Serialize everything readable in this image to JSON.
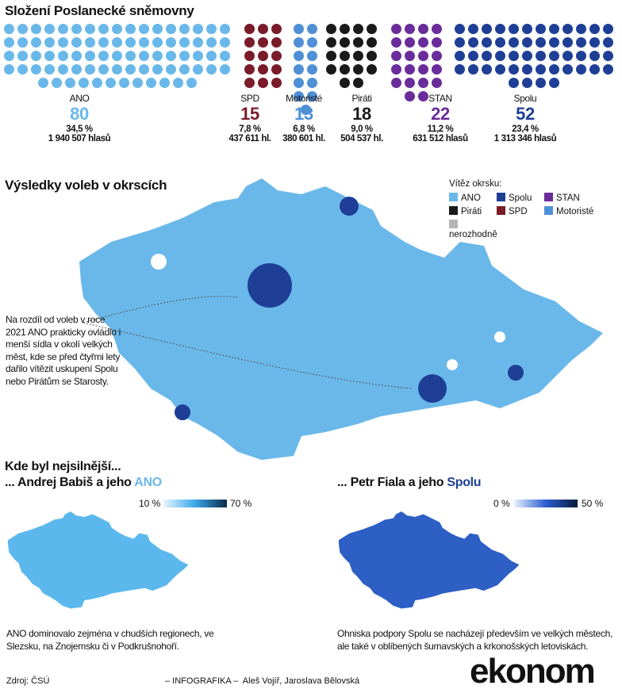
{
  "title": "Složení Poslanecké sněmovny",
  "colors": {
    "ANO": "#6ab8ea",
    "SPD": "#7a1b2a",
    "Motoristé": "#4f8fd6",
    "Piráti": "#1a1a1a",
    "STAN": "#6a2c9a",
    "Spolu": "#1f3f96",
    "nerozhodně": "#b5b5b5"
  },
  "chart_data": [
    {
      "type": "bar",
      "title": "Složení Poslanecké sněmovny",
      "categories": [
        "ANO",
        "SPD",
        "Motoristé",
        "Piráti",
        "STAN",
        "Spolu"
      ],
      "values": [
        80,
        15,
        13,
        18,
        22,
        52
      ],
      "percent": [
        "34,5 %",
        "7,8 %",
        "6,8 %",
        "9,0 %",
        "11,2 %",
        "23,4 %"
      ],
      "votes": [
        "1 940 507 hlasů",
        "437 611 hl.",
        "380 601 hl.",
        "504 537 hl.",
        "631 512 hlasů",
        "1 313 346 hlasů"
      ]
    },
    {
      "type": "heatmap",
      "title": "Výsledky voleb v okrscích",
      "legend_title": "Vítěz okrsku:",
      "legend": [
        "ANO",
        "Spolu",
        "STAN",
        "Piráti",
        "SPD",
        "Motoristé",
        "nerozhodně"
      ]
    },
    {
      "type": "heatmap",
      "title": "... Andrej Babiš a jeho ",
      "title_party": "ANO",
      "scale_min": "10 %",
      "scale_max": "70 %"
    },
    {
      "type": "heatmap",
      "title": "... Petr Fiala a jeho ",
      "title_party": "Spolu",
      "scale_min": "0 %",
      "scale_max": "50 %"
    }
  ],
  "section2_title": "Výsledky voleb v okrscích",
  "annotation": "Na rozdíl od voleb v roce 2021 ANO prakticky ovládlo i menší sídla v okolí velkých měst, kde se před čtyřmi lety dařilo vítězit uskupení Spolu nebo Pirátům se Starosty.",
  "section3_title": "Kde byl nejsilnější...",
  "note_ano": "ANO dominovalo zejména v chudších regionech, ve Slezsku, na Znojemsku či v Podkrušnohoří.",
  "note_spolu": "Ohniska podpory Spolu se nacházejí především ve velkých městech, ale také v oblíbených šumavských a krkonošských letoviskách.",
  "footer": {
    "source": "Zdroj: ČSÚ",
    "credit": "– INFOGRAFIKA –  Aleš Vojíř, Jaroslava Bělovská",
    "logo": "ekonom"
  }
}
